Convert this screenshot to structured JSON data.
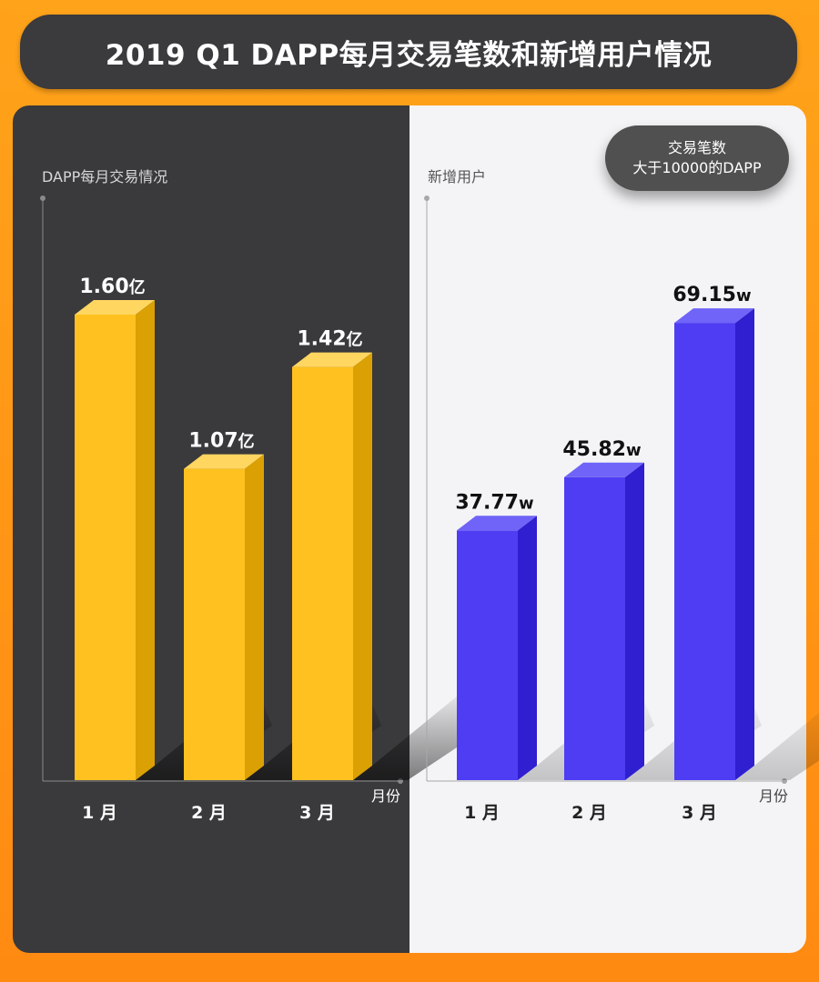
{
  "title": "2019 Q1 DAPP每月交易笔数和新增用户情况",
  "badge": {
    "line1": "交易笔数",
    "line2": "大于10000的DAPP"
  },
  "colors": {
    "left_bg": "#3a393b",
    "right_bg": "#f4f4f6",
    "yellow_front": "#fec11f",
    "yellow_side": "#dba003",
    "yellow_top": "#ffd660",
    "blue_front": "#4e3df2",
    "blue_side": "#2f1fd0",
    "blue_top": "#6f64f7"
  },
  "chart_data": [
    {
      "type": "bar",
      "ylabel": "DAPP每月交易情况",
      "xlabel": "月份",
      "categories": [
        "1 月",
        "2 月",
        "3 月"
      ],
      "values": [
        1.6,
        1.07,
        1.42
      ],
      "value_labels": [
        {
          "num": "1.60",
          "unit": "亿"
        },
        {
          "num": "1.07",
          "unit": "亿"
        },
        {
          "num": "1.42",
          "unit": "亿"
        }
      ],
      "ylim": [
        0,
        2.0
      ]
    },
    {
      "type": "bar",
      "ylabel": "新增用户",
      "xlabel": "月份",
      "categories": [
        "1 月",
        "2 月",
        "3 月"
      ],
      "values": [
        37.77,
        45.82,
        69.15
      ],
      "value_labels": [
        {
          "num": "37.77",
          "unit": "w"
        },
        {
          "num": "45.82",
          "unit": "w"
        },
        {
          "num": "69.15",
          "unit": "w"
        }
      ],
      "ylim": [
        0,
        88
      ]
    }
  ]
}
